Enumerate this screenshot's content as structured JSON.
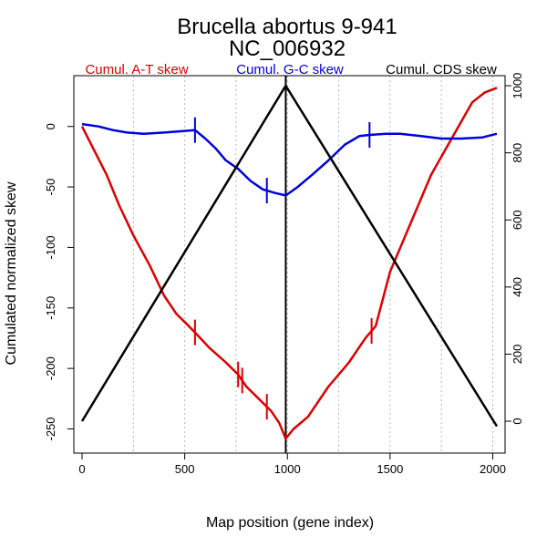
{
  "chart_data": {
    "type": "line",
    "title": "Brucella abortus 9-941",
    "subtitle": "NC_006932",
    "xlabel": "Map position (gene index)",
    "ylabel_left": "Cumulated normalized skew",
    "xlim": [
      -40,
      2060
    ],
    "ylim_left": [
      -270,
      42
    ],
    "ylim_right": [
      -95,
      1030
    ],
    "x_ticks": [
      0,
      500,
      1000,
      1500,
      2000
    ],
    "y_left_ticks": [
      0,
      -50,
      -100,
      -150,
      -200,
      -250
    ],
    "y_right_ticks": [
      0,
      200,
      400,
      600,
      800,
      1000
    ],
    "x_grid": [
      250,
      500,
      750,
      1000,
      1250,
      1500,
      1750,
      2000
    ],
    "vertical_line_x": 992,
    "series": [
      {
        "name": "Cumul. A-T skew",
        "color": "#dd0000",
        "axis": "left",
        "x": [
          0,
          60,
          120,
          180,
          250,
          330,
          400,
          460,
          520,
          560,
          620,
          700,
          760,
          800,
          860,
          920,
          960,
          992,
          1030,
          1100,
          1200,
          1300,
          1380,
          1430,
          1500,
          1600,
          1700,
          1800,
          1900,
          1960,
          2020
        ],
        "y": [
          0,
          -20,
          -40,
          -65,
          -90,
          -115,
          -140,
          -155,
          -165,
          -172,
          -183,
          -195,
          -205,
          -215,
          -225,
          -235,
          -245,
          -258,
          -250,
          -240,
          -215,
          -195,
          -175,
          -165,
          -120,
          -80,
          -40,
          -10,
          20,
          28,
          32
        ]
      },
      {
        "name": "Cumul. G-C skew",
        "color": "#0000dd",
        "axis": "left",
        "x": [
          0,
          80,
          150,
          220,
          300,
          400,
          480,
          550,
          600,
          650,
          700,
          760,
          820,
          880,
          940,
          992,
          1050,
          1120,
          1200,
          1280,
          1350,
          1400,
          1480,
          1550,
          1650,
          1750,
          1850,
          1950,
          2020
        ],
        "y": [
          2,
          0,
          -3,
          -5,
          -6,
          -5,
          -4,
          -3,
          -10,
          -18,
          -28,
          -35,
          -45,
          -52,
          -55,
          -57,
          -50,
          -40,
          -28,
          -15,
          -8,
          -7,
          -6,
          -6,
          -8,
          -10,
          -10,
          -9,
          -6
        ]
      },
      {
        "name": "Cumul. CDS skew",
        "color": "#000000",
        "axis": "right",
        "x": [
          0,
          992,
          2020
        ],
        "y": [
          0,
          1000,
          -15
        ]
      }
    ],
    "markers": [
      {
        "series": "Cumul. A-T skew",
        "x": [
          550,
          760,
          780,
          900,
          1410
        ]
      },
      {
        "series": "Cumul. G-C skew",
        "x": [
          550,
          900,
          1400
        ]
      }
    ]
  }
}
